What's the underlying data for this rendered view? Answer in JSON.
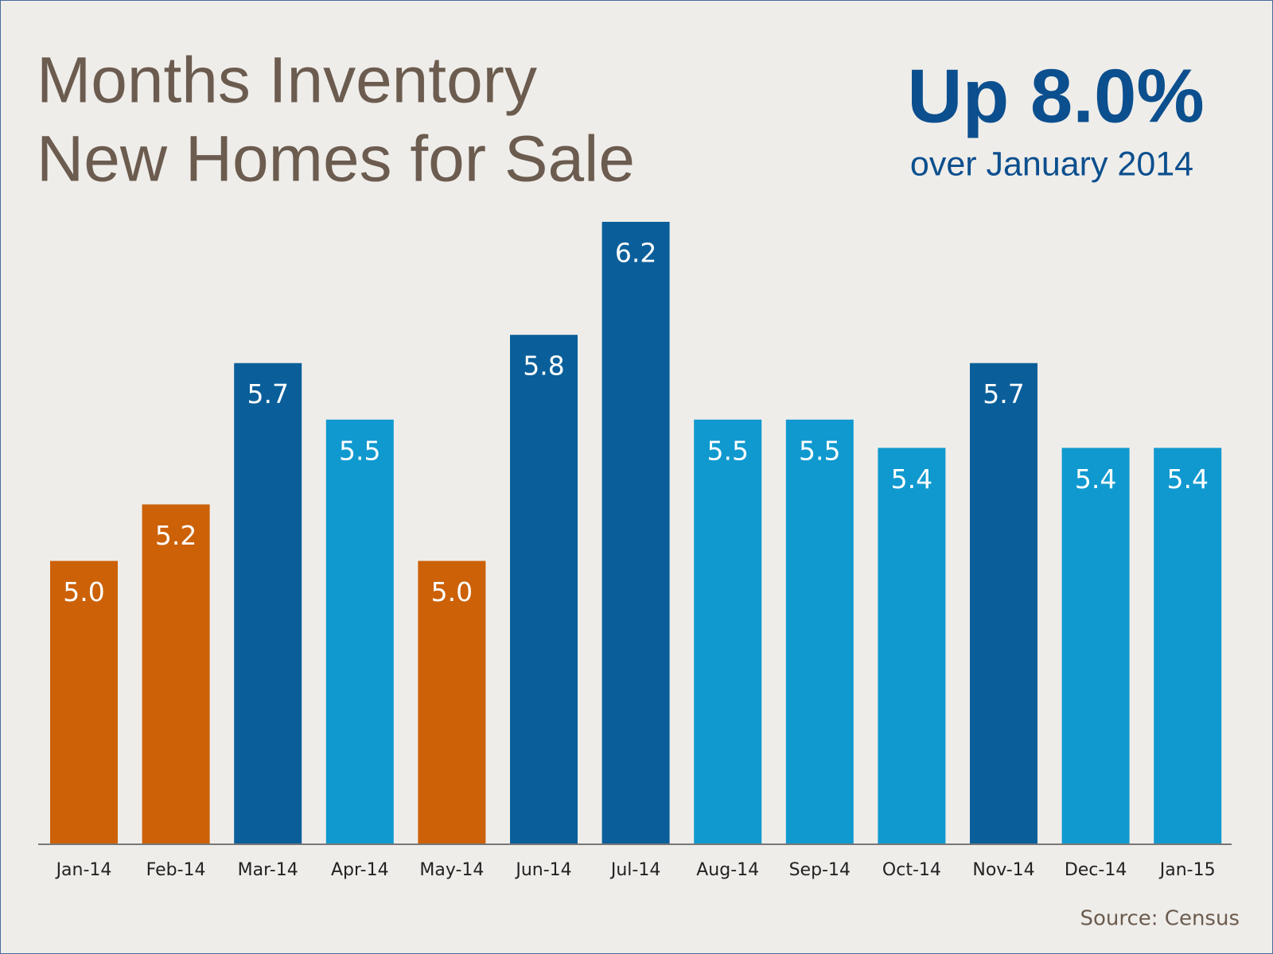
{
  "chart_data": {
    "type": "bar",
    "title": "Months Inventory",
    "subtitle": "New Homes for Sale",
    "annotation": "Up 8.0%",
    "annotation_subtitle": "over January 2014",
    "source": "Source: Census",
    "categories": [
      "Jan-14",
      "Feb-14",
      "Mar-14",
      "Apr-14",
      "May-14",
      "Jun-14",
      "Jul-14",
      "Aug-14",
      "Sep-14",
      "Oct-14",
      "Nov-14",
      "Dec-14",
      "Jan-15"
    ],
    "values": [
      5.0,
      5.2,
      5.7,
      5.5,
      5.0,
      5.8,
      6.2,
      5.5,
      5.5,
      5.4,
      5.7,
      5.4,
      5.4
    ],
    "value_labels": [
      "5.0",
      "5.2",
      "5.7",
      "5.5",
      "5.0",
      "5.8",
      "6.2",
      "5.5",
      "5.5",
      "5.4",
      "5.7",
      "5.4",
      "5.4"
    ],
    "colors": [
      "#cc6108",
      "#cc6108",
      "#0a5f9a",
      "#1099cf",
      "#cc6108",
      "#0a5f9a",
      "#0a5f9a",
      "#1099cf",
      "#1099cf",
      "#1099cf",
      "#0a5f9a",
      "#1099cf",
      "#1099cf"
    ],
    "ylim": [
      4,
      6.2
    ]
  }
}
